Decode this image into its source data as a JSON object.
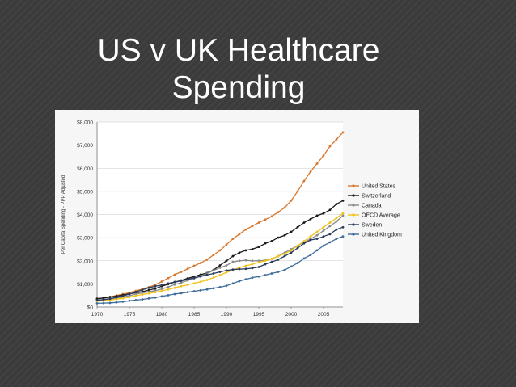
{
  "slide": {
    "title_line1": "US v UK Healthcare",
    "title_line2": "Spending",
    "background": "#3b3b3b",
    "title_color": "#ffffff"
  },
  "chart_data": {
    "type": "line",
    "title": "",
    "xlabel": "",
    "ylabel": "Per Capita Spending - PPP Adjusted",
    "x": [
      1970,
      1971,
      1972,
      1973,
      1974,
      1975,
      1976,
      1977,
      1978,
      1979,
      1980,
      1981,
      1982,
      1983,
      1984,
      1985,
      1986,
      1987,
      1988,
      1989,
      1990,
      1991,
      1992,
      1993,
      1994,
      1995,
      1996,
      1997,
      1998,
      1999,
      2000,
      2001,
      2002,
      2003,
      2004,
      2005,
      2006,
      2007,
      2008
    ],
    "xlim": [
      1970,
      2008
    ],
    "ylim": [
      0,
      8000
    ],
    "x_ticks": [
      1970,
      1975,
      1980,
      1985,
      1990,
      1995,
      2000,
      2005
    ],
    "x_tick_labels": [
      "1970",
      "1975",
      "1980",
      "1985",
      "1990",
      "1995",
      "2000",
      "2005"
    ],
    "y_ticks": [
      0,
      1000,
      2000,
      3000,
      4000,
      5000,
      6000,
      7000,
      8000
    ],
    "y_tick_labels": [
      "$0",
      "$1,000",
      "$2,000",
      "$3,000",
      "$4,000",
      "$5,000",
      "$6,000",
      "$7,000",
      "$8,000"
    ],
    "grid": true,
    "legend_position": "right",
    "series": [
      {
        "name": "United States",
        "color": "#d9782f",
        "values": [
          350,
          390,
          440,
          500,
          560,
          620,
          700,
          780,
          860,
          960,
          1100,
          1250,
          1400,
          1520,
          1650,
          1780,
          1900,
          2050,
          2250,
          2450,
          2700,
          2950,
          3150,
          3350,
          3500,
          3650,
          3780,
          3920,
          4100,
          4300,
          4600,
          5000,
          5450,
          5850,
          6200,
          6550,
          6950,
          7250,
          7550
        ]
      },
      {
        "name": "Switzerland",
        "color": "#1a1a1a",
        "values": [
          360,
          390,
          430,
          470,
          520,
          570,
          620,
          660,
          730,
          800,
          900,
          990,
          1080,
          1150,
          1240,
          1320,
          1400,
          1470,
          1600,
          1800,
          2000,
          2200,
          2350,
          2450,
          2500,
          2600,
          2750,
          2850,
          3000,
          3100,
          3250,
          3450,
          3650,
          3800,
          3950,
          4050,
          4200,
          4450,
          4600
        ]
      },
      {
        "name": "Canada",
        "color": "#8a8a8a",
        "values": [
          290,
          320,
          350,
          390,
          430,
          490,
          560,
          610,
          660,
          710,
          780,
          870,
          970,
          1050,
          1150,
          1230,
          1340,
          1450,
          1580,
          1700,
          1800,
          1950,
          2000,
          2020,
          2000,
          2000,
          2020,
          2080,
          2200,
          2350,
          2500,
          2650,
          2800,
          2950,
          3100,
          3300,
          3500,
          3700,
          3950
        ]
      },
      {
        "name": "OECD Average",
        "color": "#f0c419",
        "values": [
          260,
          280,
          300,
          340,
          380,
          430,
          490,
          540,
          590,
          640,
          700,
          760,
          830,
          900,
          960,
          1020,
          1090,
          1170,
          1270,
          1380,
          1500,
          1600,
          1700,
          1780,
          1850,
          1930,
          2000,
          2080,
          2200,
          2300,
          2450,
          2650,
          2850,
          3050,
          3250,
          3450,
          3650,
          3850,
          4050
        ]
      },
      {
        "name": "Sweden",
        "color": "#2a3b5c",
        "values": [
          290,
          320,
          360,
          420,
          480,
          560,
          650,
          740,
          830,
          900,
          950,
          1020,
          1080,
          1130,
          1200,
          1260,
          1320,
          1390,
          1450,
          1520,
          1580,
          1620,
          1640,
          1650,
          1680,
          1730,
          1850,
          1950,
          2050,
          2200,
          2350,
          2550,
          2750,
          2900,
          2950,
          3050,
          3150,
          3350,
          3450
        ]
      },
      {
        "name": "United Kingdom",
        "color": "#3f6d99",
        "values": [
          160,
          170,
          180,
          200,
          230,
          270,
          300,
          330,
          370,
          410,
          460,
          510,
          560,
          600,
          640,
          680,
          720,
          760,
          810,
          860,
          920,
          1020,
          1120,
          1200,
          1270,
          1320,
          1380,
          1450,
          1520,
          1600,
          1750,
          1900,
          2100,
          2250,
          2450,
          2650,
          2800,
          2950,
          3050
        ]
      }
    ]
  }
}
